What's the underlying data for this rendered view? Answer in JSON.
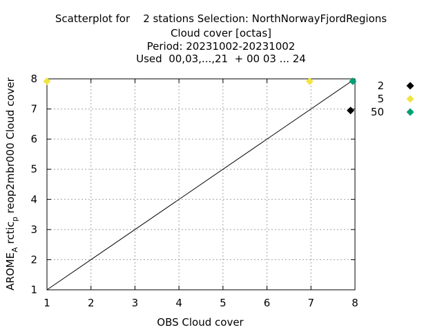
{
  "chart_data": {
    "type": "scatter",
    "title_lines": [
      "Scatterplot for    2 stations Selection: NorthNorwayFjordRegions",
      "Cloud cover [octas]",
      "Period: 20231002-20231002",
      "Used  00,03,...,21  + 00 03 ... 24"
    ],
    "xlabel": "OBS Cloud cover",
    "ylabel": {
      "parts": [
        {
          "text": "AROME",
          "sub": false
        },
        {
          "text": "A",
          "sub": true
        },
        {
          "text": " rctic",
          "sub": false
        },
        {
          "text": "p",
          "sub": true
        },
        {
          "text": " reop2mbr000 Cloud cover",
          "sub": false
        }
      ]
    },
    "xlim": [
      1,
      8
    ],
    "ylim": [
      1,
      8
    ],
    "xticks": [
      "1",
      "2",
      "3",
      "4",
      "5",
      "6",
      "7",
      "8"
    ],
    "yticks": [
      "1",
      "2",
      "3",
      "4",
      "5",
      "6",
      "7",
      "8"
    ],
    "grid": true,
    "diagonal": true,
    "series": [
      {
        "name": "2",
        "color": "#000000",
        "points": [
          [
            7.9,
            6.95
          ]
        ]
      },
      {
        "name": "5",
        "color": "#f0e442",
        "points": [
          [
            1.0,
            7.92
          ],
          [
            6.97,
            7.92
          ]
        ]
      },
      {
        "name": "50",
        "color": "#009e73",
        "points": [
          [
            7.95,
            7.92
          ]
        ]
      }
    ],
    "legend_position": "right-outside-top"
  }
}
